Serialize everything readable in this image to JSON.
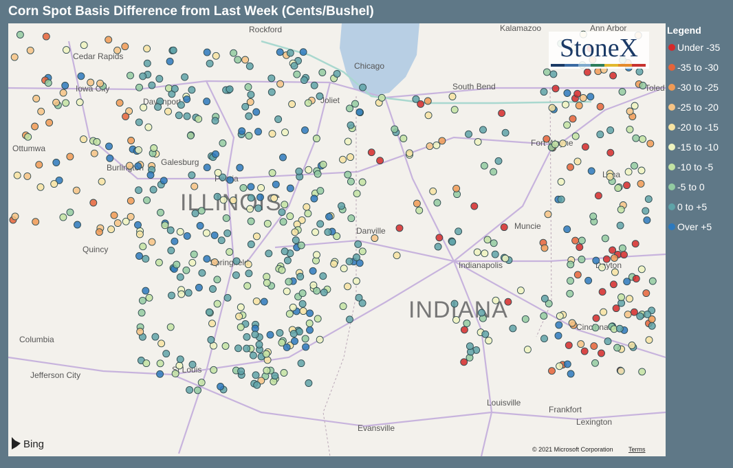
{
  "header": {
    "title": "Corn Spot Basis Difference from Last Week (Cents/Bushel)"
  },
  "legend": {
    "title": "Legend",
    "items": [
      {
        "label": "Under -35",
        "color": "#d42a2a"
      },
      {
        "label": "-35 to -30",
        "color": "#e5643a"
      },
      {
        "label": "-30 to -25",
        "color": "#f09a55"
      },
      {
        "label": "-25 to -20",
        "color": "#f6c385"
      },
      {
        "label": "-20 to -15",
        "color": "#f7e3a2"
      },
      {
        "label": "-15 to -10",
        "color": "#eef3bf"
      },
      {
        "label": "-10 to -5",
        "color": "#c3e3a3"
      },
      {
        "label": "-5 to 0",
        "color": "#93cba1"
      },
      {
        "label": "0 to +5",
        "color": "#5fa3a8"
      },
      {
        "label": "Over +5",
        "color": "#2d79bd"
      }
    ]
  },
  "map": {
    "logo": "StoneX",
    "attribution": "Bing",
    "copyright": "© 2021 Microsoft Corporation",
    "terms": "Terms",
    "places": [
      "Rockford",
      "Chicago",
      "Kalamazoo",
      "Ann Arbor",
      "Toled",
      "Cedar Rapids",
      "Iowa City",
      "Davenport",
      "Joliet",
      "South Bend",
      "Ottumwa",
      "Burlington",
      "Galesburg",
      "Peoria",
      "Fort Wayne",
      "ILLINOIS",
      "Danville",
      "Muncie",
      "Lima",
      "Quincy",
      "Springfield",
      "Indianapolis",
      "Dayton",
      "INDIANA",
      "Columbia",
      "Cincinnati",
      "Jefferson City",
      "St Louis",
      "Louisville",
      "Frankfort",
      "Lexington",
      "Evansville"
    ]
  }
}
